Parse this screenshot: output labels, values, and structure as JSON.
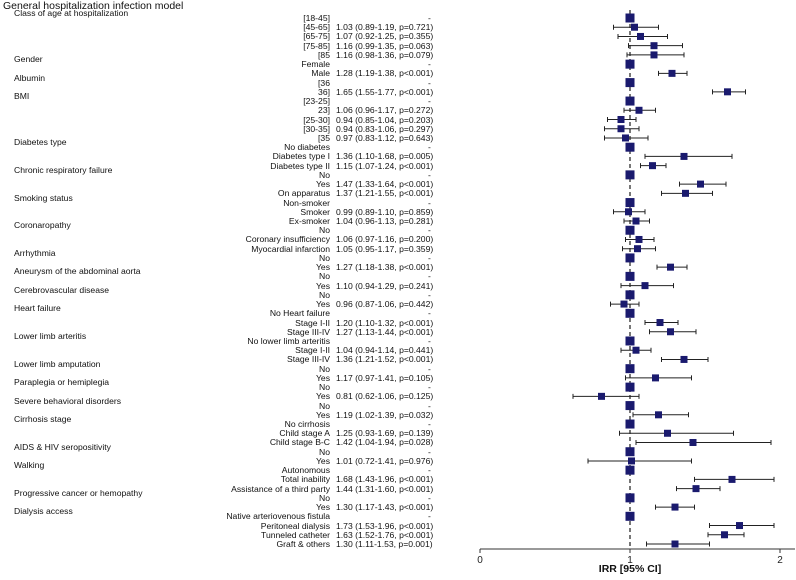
{
  "title": "General hospitalization infection model",
  "chart_data": {
    "type": "forest",
    "title": "General hospitalization infection model",
    "xlabel": "IRR [95% CI]",
    "xlim": [
      0,
      2.1
    ],
    "xticks": [
      "0",
      "1",
      "2"
    ],
    "reference_line": 1,
    "rows": [
      {
        "variable": "Class of age at hospitalization",
        "level": "[18-45]",
        "text": "-",
        "irr": 1,
        "lo": null,
        "hi": null,
        "ref": true
      },
      {
        "variable": "",
        "level": "[45-65]",
        "text": "1.03 (0.89-1.19, p=0.721)",
        "irr": 1.03,
        "lo": 0.89,
        "hi": 1.19
      },
      {
        "variable": "",
        "level": "[65-75]",
        "text": "1.07 (0.92-1.25, p=0.355)",
        "irr": 1.07,
        "lo": 0.92,
        "hi": 1.25
      },
      {
        "variable": "",
        "level": "[75-85]",
        "text": "1.16 (0.99-1.35, p=0.063)",
        "irr": 1.16,
        "lo": 0.99,
        "hi": 1.35
      },
      {
        "variable": "",
        "level": "[85",
        "text": "1.16 (0.98-1.36, p=0.079)",
        "irr": 1.16,
        "lo": 0.98,
        "hi": 1.36
      },
      {
        "variable": "Gender",
        "level": "Female",
        "text": "-",
        "irr": 1,
        "lo": null,
        "hi": null,
        "ref": true
      },
      {
        "variable": "",
        "level": "Male",
        "text": "1.28 (1.19-1.38, p<0.001)",
        "irr": 1.28,
        "lo": 1.19,
        "hi": 1.38
      },
      {
        "variable": "Albumin",
        "level": "[36",
        "text": "-",
        "irr": 1,
        "lo": null,
        "hi": null,
        "ref": true
      },
      {
        "variable": "",
        "level": "36]",
        "text": "1.65 (1.55-1.77, p<0.001)",
        "irr": 1.65,
        "lo": 1.55,
        "hi": 1.77
      },
      {
        "variable": "BMI",
        "level": "[23-25]",
        "text": "-",
        "irr": 1,
        "lo": null,
        "hi": null,
        "ref": true
      },
      {
        "variable": "",
        "level": "23]",
        "text": "1.06 (0.96-1.17, p=0.272)",
        "irr": 1.06,
        "lo": 0.96,
        "hi": 1.17
      },
      {
        "variable": "",
        "level": "[25-30]",
        "text": "0.94 (0.85-1.04, p=0.203)",
        "irr": 0.94,
        "lo": 0.85,
        "hi": 1.04
      },
      {
        "variable": "",
        "level": "[30-35]",
        "text": "0.94 (0.83-1.06, p=0.297)",
        "irr": 0.94,
        "lo": 0.83,
        "hi": 1.06
      },
      {
        "variable": "",
        "level": "[35",
        "text": "0.97 (0.83-1.12, p=0.643)",
        "irr": 0.97,
        "lo": 0.83,
        "hi": 1.12
      },
      {
        "variable": "Diabetes type",
        "level": "No diabetes",
        "text": "-",
        "irr": 1,
        "lo": null,
        "hi": null,
        "ref": true
      },
      {
        "variable": "",
        "level": "Diabetes type I",
        "text": "1.36 (1.10-1.68, p=0.005)",
        "irr": 1.36,
        "lo": 1.1,
        "hi": 1.68
      },
      {
        "variable": "",
        "level": "Diabetes type II",
        "text": "1.15 (1.07-1.24, p<0.001)",
        "irr": 1.15,
        "lo": 1.07,
        "hi": 1.24
      },
      {
        "variable": "Chronic respiratory failure",
        "level": "No",
        "text": "-",
        "irr": 1,
        "lo": null,
        "hi": null,
        "ref": true
      },
      {
        "variable": "",
        "level": "Yes",
        "text": "1.47 (1.33-1.64, p<0.001)",
        "irr": 1.47,
        "lo": 1.33,
        "hi": 1.64
      },
      {
        "variable": "",
        "level": "On apparatus",
        "text": "1.37 (1.21-1.55, p<0.001)",
        "irr": 1.37,
        "lo": 1.21,
        "hi": 1.55
      },
      {
        "variable": "Smoking status",
        "level": "Non-smoker",
        "text": "-",
        "irr": 1,
        "lo": null,
        "hi": null,
        "ref": true
      },
      {
        "variable": "",
        "level": "Smoker",
        "text": "0.99 (0.89-1.10, p=0.859)",
        "irr": 0.99,
        "lo": 0.89,
        "hi": 1.1
      },
      {
        "variable": "",
        "level": "Ex-smoker",
        "text": "1.04 (0.96-1.13, p=0.281)",
        "irr": 1.04,
        "lo": 0.96,
        "hi": 1.13
      },
      {
        "variable": "Coronaropathy",
        "level": "No",
        "text": "-",
        "irr": 1,
        "lo": null,
        "hi": null,
        "ref": true
      },
      {
        "variable": "",
        "level": "Coronary insufficiency",
        "text": "1.06 (0.97-1.16, p=0.200)",
        "irr": 1.06,
        "lo": 0.97,
        "hi": 1.16
      },
      {
        "variable": "",
        "level": "Myocardial infarction",
        "text": "1.05 (0.95-1.17, p=0.359)",
        "irr": 1.05,
        "lo": 0.95,
        "hi": 1.17
      },
      {
        "variable": "Arrhythmia",
        "level": "No",
        "text": "-",
        "irr": 1,
        "lo": null,
        "hi": null,
        "ref": true
      },
      {
        "variable": "",
        "level": "Yes",
        "text": "1.27 (1.18-1.38, p<0.001)",
        "irr": 1.27,
        "lo": 1.18,
        "hi": 1.38
      },
      {
        "variable": "Aneurysm of the abdominal aorta",
        "level": "No",
        "text": "-",
        "irr": 1,
        "lo": null,
        "hi": null,
        "ref": true
      },
      {
        "variable": "",
        "level": "Yes",
        "text": "1.10 (0.94-1.29, p=0.241)",
        "irr": 1.1,
        "lo": 0.94,
        "hi": 1.29
      },
      {
        "variable": "Cerebrovascular disease",
        "level": "No",
        "text": "-",
        "irr": 1,
        "lo": null,
        "hi": null,
        "ref": true
      },
      {
        "variable": "",
        "level": "Yes",
        "text": "0.96 (0.87-1.06, p=0.442)",
        "irr": 0.96,
        "lo": 0.87,
        "hi": 1.06
      },
      {
        "variable": "Heart failure",
        "level": "No Heart failure",
        "text": "-",
        "irr": 1,
        "lo": null,
        "hi": null,
        "ref": true
      },
      {
        "variable": "",
        "level": "Stage I-II",
        "text": "1.20 (1.10-1.32, p<0.001)",
        "irr": 1.2,
        "lo": 1.1,
        "hi": 1.32
      },
      {
        "variable": "",
        "level": "Stage III-IV",
        "text": "1.27 (1.13-1.44, p<0.001)",
        "irr": 1.27,
        "lo": 1.13,
        "hi": 1.44
      },
      {
        "variable": "Lower limb arteritis",
        "level": "No lower limb arteritis",
        "text": "-",
        "irr": 1,
        "lo": null,
        "hi": null,
        "ref": true
      },
      {
        "variable": "",
        "level": "Stage I-II",
        "text": "1.04 (0.94-1.14, p=0.441)",
        "irr": 1.04,
        "lo": 0.94,
        "hi": 1.14
      },
      {
        "variable": "",
        "level": "Stage III-IV",
        "text": "1.36 (1.21-1.52, p<0.001)",
        "irr": 1.36,
        "lo": 1.21,
        "hi": 1.52
      },
      {
        "variable": "Lower limb amputation",
        "level": "No",
        "text": "-",
        "irr": 1,
        "lo": null,
        "hi": null,
        "ref": true
      },
      {
        "variable": "",
        "level": "Yes",
        "text": "1.17 (0.97-1.41, p=0.105)",
        "irr": 1.17,
        "lo": 0.97,
        "hi": 1.41
      },
      {
        "variable": "Paraplegia or hemiplegia",
        "level": "No",
        "text": "-",
        "irr": 1,
        "lo": null,
        "hi": null,
        "ref": true
      },
      {
        "variable": "",
        "level": "Yes",
        "text": "0.81 (0.62-1.06, p=0.125)",
        "irr": 0.81,
        "lo": 0.62,
        "hi": 1.06
      },
      {
        "variable": "Severe behavioral disorders",
        "level": "No",
        "text": "-",
        "irr": 1,
        "lo": null,
        "hi": null,
        "ref": true
      },
      {
        "variable": "",
        "level": "Yes",
        "text": "1.19 (1.02-1.39, p=0.032)",
        "irr": 1.19,
        "lo": 1.02,
        "hi": 1.39
      },
      {
        "variable": "Cirrhosis  stage",
        "level": "No cirrhosis",
        "text": "-",
        "irr": 1,
        "lo": null,
        "hi": null,
        "ref": true
      },
      {
        "variable": "",
        "level": "Child stage A",
        "text": "1.25 (0.93-1.69, p=0.139)",
        "irr": 1.25,
        "lo": 0.93,
        "hi": 1.69
      },
      {
        "variable": "",
        "level": "Child stage B-C",
        "text": "1.42 (1.04-1.94, p=0.028)",
        "irr": 1.42,
        "lo": 1.04,
        "hi": 1.94
      },
      {
        "variable": "AIDS & HIV seropositivity",
        "level": "No",
        "text": "-",
        "irr": 1,
        "lo": null,
        "hi": null,
        "ref": true
      },
      {
        "variable": "",
        "level": "Yes",
        "text": "1.01 (0.72-1.41, p=0.976)",
        "irr": 1.01,
        "lo": 0.72,
        "hi": 1.41
      },
      {
        "variable": "Walking",
        "level": "Autonomous",
        "text": "-",
        "irr": 1,
        "lo": null,
        "hi": null,
        "ref": true
      },
      {
        "variable": "",
        "level": "Total inability",
        "text": "1.68 (1.43-1.96, p<0.001)",
        "irr": 1.68,
        "lo": 1.43,
        "hi": 1.96
      },
      {
        "variable": "",
        "level": "Assistance of a third party",
        "text": "1.44 (1.31-1.60, p<0.001)",
        "irr": 1.44,
        "lo": 1.31,
        "hi": 1.6
      },
      {
        "variable": "Progressive cancer or hemopathy",
        "level": "No",
        "text": "-",
        "irr": 1,
        "lo": null,
        "hi": null,
        "ref": true
      },
      {
        "variable": "",
        "level": "Yes",
        "text": "1.30 (1.17-1.43, p<0.001)",
        "irr": 1.3,
        "lo": 1.17,
        "hi": 1.43
      },
      {
        "variable": "Dialysis access",
        "level": "Native arteriovenous fistula",
        "text": "-",
        "irr": 1,
        "lo": null,
        "hi": null,
        "ref": true
      },
      {
        "variable": "",
        "level": "Peritoneal dialysis",
        "text": "1.73 (1.53-1.96, p<0.001)",
        "irr": 1.73,
        "lo": 1.53,
        "hi": 1.96
      },
      {
        "variable": "",
        "level": "Tunneled catheter",
        "text": "1.63 (1.52-1.76, p<0.001)",
        "irr": 1.63,
        "lo": 1.52,
        "hi": 1.76
      },
      {
        "variable": "",
        "level": "Graft & others",
        "text": "1.30 (1.11-1.53, p=0.001)",
        "irr": 1.3,
        "lo": 1.11,
        "hi": 1.53
      }
    ]
  },
  "colors": {
    "marker": "#1a1a6e",
    "line": "#222222",
    "reference": "#555555"
  }
}
